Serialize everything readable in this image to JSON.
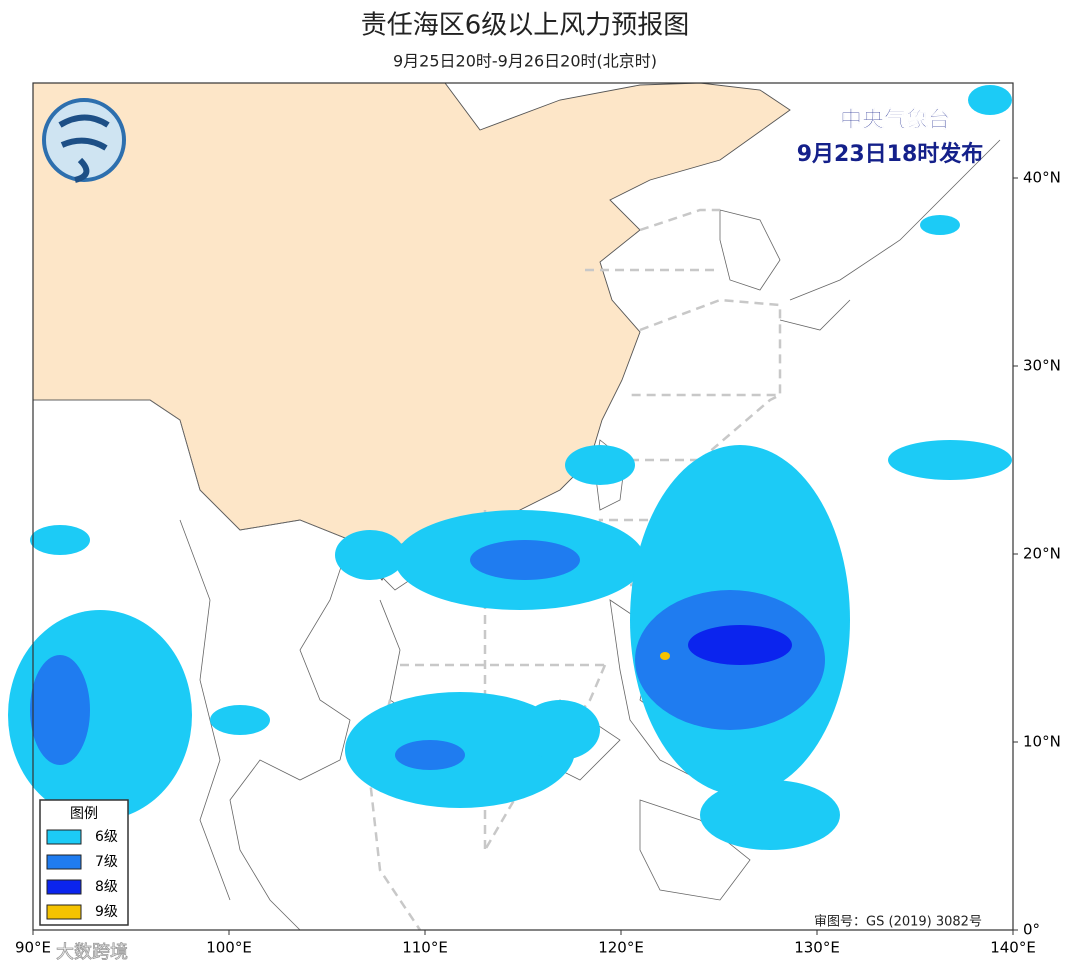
{
  "header": {
    "title": "责任海区6级以上风力预报图",
    "subtitle": "9月25日20时-9月26日20时(北京时)"
  },
  "issuer": {
    "name": "中央气象台",
    "time": "9月23日18时发布"
  },
  "axes": {
    "lon": [
      {
        "value": 90,
        "label": "90°E"
      },
      {
        "value": 100,
        "label": "100°E"
      },
      {
        "value": 110,
        "label": "110°E"
      },
      {
        "value": 120,
        "label": "120°E"
      },
      {
        "value": 130,
        "label": "130°E"
      },
      {
        "value": 140,
        "label": "140°E"
      }
    ],
    "lat": [
      {
        "value": 40,
        "label": "40°N"
      },
      {
        "value": 30,
        "label": "30°N"
      },
      {
        "value": 20,
        "label": "20°N"
      },
      {
        "value": 10,
        "label": "10°N"
      },
      {
        "value": 0,
        "label": "0°"
      }
    ]
  },
  "legend": {
    "title": "图例",
    "items": [
      {
        "label": "6级",
        "color": "#1ccbf6"
      },
      {
        "label": "7级",
        "color": "#1f7cf0"
      },
      {
        "label": "8级",
        "color": "#0b24ee"
      },
      {
        "label": "9级",
        "color": "#f5c300"
      }
    ]
  },
  "approval": "审图号：GS (2019) 3082号",
  "watermark": "大数跨境"
}
